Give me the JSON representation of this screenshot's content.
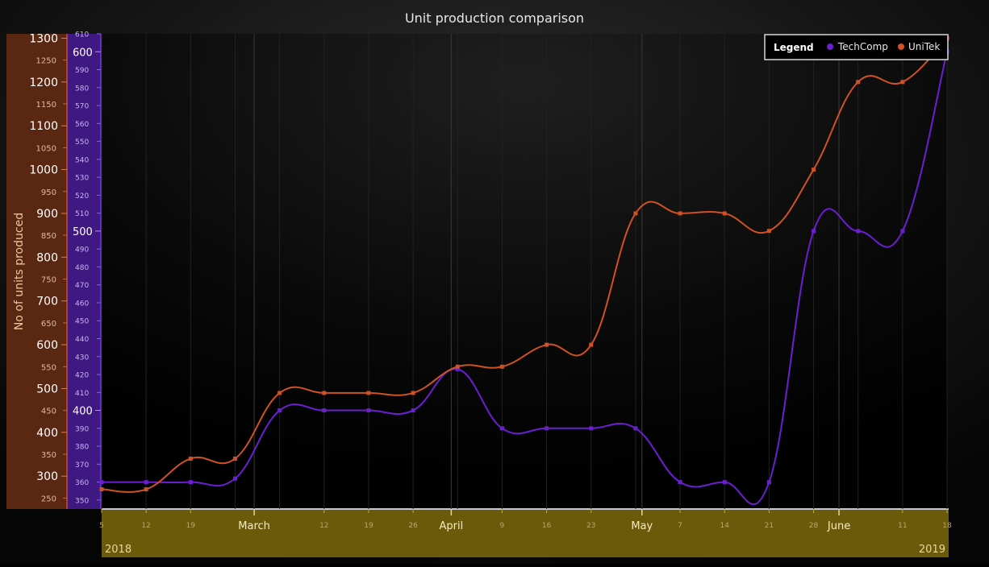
{
  "chart_data": {
    "type": "line",
    "title": "Unit production comparison",
    "ylabel": "No of units produced",
    "xlabel": "",
    "legend": {
      "title": "Legend",
      "placement": "top-right",
      "items": [
        "TechComp",
        "UniTek"
      ]
    },
    "x_dates": [
      "2018-02-05",
      "2018-02-12",
      "2018-02-19",
      "2018-02-26",
      "2018-03-05",
      "2018-03-12",
      "2018-03-19",
      "2018-03-26",
      "2018-04-02",
      "2018-04-09",
      "2018-04-16",
      "2018-04-23",
      "2018-04-30",
      "2018-05-07",
      "2018-05-14",
      "2018-05-21",
      "2018-05-28",
      "2018-06-04",
      "2018-06-11",
      "2018-06-18"
    ],
    "x_range": [
      "2018-02-05",
      "2018-06-18"
    ],
    "x_major_ticks": [
      {
        "date": "2018-03-01",
        "label": "March"
      },
      {
        "date": "2018-04-01",
        "label": "April"
      },
      {
        "date": "2018-05-01",
        "label": "May"
      },
      {
        "date": "2018-06-01",
        "label": "June"
      }
    ],
    "x_minor_ticks": [
      {
        "date": "2018-02-05",
        "label": "5"
      },
      {
        "date": "2018-02-12",
        "label": "12"
      },
      {
        "date": "2018-02-19",
        "label": "19"
      },
      {
        "date": "2018-03-12",
        "label": "12"
      },
      {
        "date": "2018-03-19",
        "label": "19"
      },
      {
        "date": "2018-03-26",
        "label": "26"
      },
      {
        "date": "2018-04-09",
        "label": "9"
      },
      {
        "date": "2018-04-16",
        "label": "16"
      },
      {
        "date": "2018-04-23",
        "label": "23"
      },
      {
        "date": "2018-05-07",
        "label": "7"
      },
      {
        "date": "2018-05-14",
        "label": "14"
      },
      {
        "date": "2018-05-21",
        "label": "21"
      },
      {
        "date": "2018-05-28",
        "label": "28"
      },
      {
        "date": "2018-06-11",
        "label": "11"
      },
      {
        "date": "2018-06-18",
        "label": "18"
      }
    ],
    "x_year_labels": {
      "left": "2018",
      "right": "2019"
    },
    "series": [
      {
        "name": "TechComp",
        "color": "#6a1fd0",
        "axis": "inner",
        "values": [
          360,
          360,
          360,
          362,
          400,
          400,
          400,
          400,
          423,
          390,
          390,
          390,
          390,
          360,
          360,
          360,
          500,
          500,
          500,
          600
        ]
      },
      {
        "name": "UniTek",
        "color": "#cf5124",
        "axis": "outer",
        "values": [
          270,
          270,
          340,
          340,
          490,
          490,
          490,
          490,
          550,
          550,
          600,
          600,
          900,
          900,
          900,
          860,
          1000,
          1200,
          1200,
          1300
        ]
      }
    ],
    "y_outer": {
      "color": "#cf5124",
      "range": [
        225,
        1310
      ],
      "major_ticks": [
        300,
        400,
        500,
        600,
        700,
        800,
        900,
        1000,
        1100,
        1200,
        1300
      ],
      "minor_ticks": [
        250,
        350,
        450,
        550,
        650,
        750,
        850,
        950,
        1050,
        1150,
        1250
      ]
    },
    "y_inner": {
      "color": "#6a1fd0",
      "range": [
        345,
        610
      ],
      "major_ticks": [
        400,
        500,
        600
      ],
      "minor_ticks": [
        350,
        360,
        370,
        380,
        390,
        410,
        420,
        430,
        440,
        450,
        460,
        470,
        480,
        490,
        510,
        520,
        530,
        540,
        550,
        560,
        570,
        580,
        590,
        610
      ]
    },
    "grid": true
  }
}
